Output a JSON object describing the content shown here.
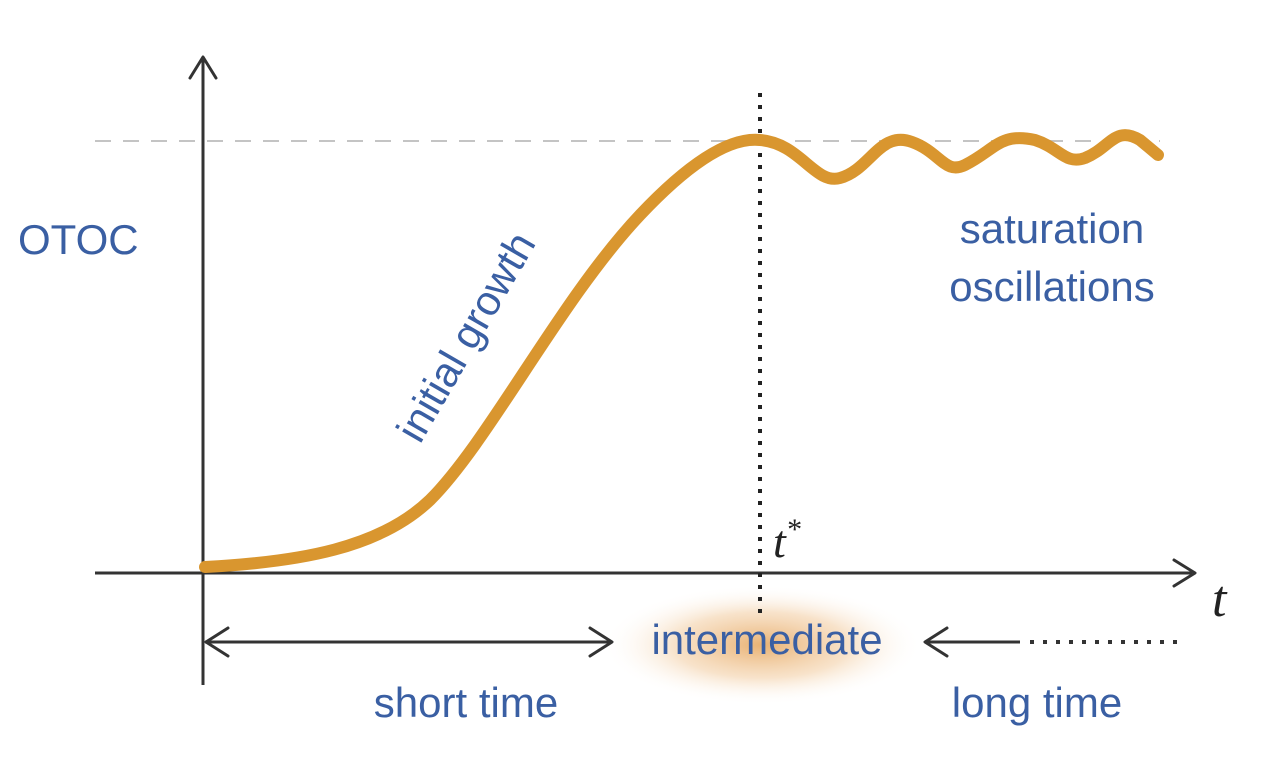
{
  "labels": {
    "y_axis": "OTOC",
    "x_axis": "t",
    "t_star": "t",
    "t_star_superscript": "*",
    "initial_growth": "initial growth",
    "saturation_line1": "saturation",
    "saturation_line2": "oscillations",
    "intermediate": "intermediate",
    "short_time": "short time",
    "long_time": "long time"
  },
  "colors": {
    "axis": "#333333",
    "curve": "#d9962f",
    "text": "#3a5fa3",
    "glow": "#e8b06a",
    "dashed_reference": "#bdbdbd"
  }
}
